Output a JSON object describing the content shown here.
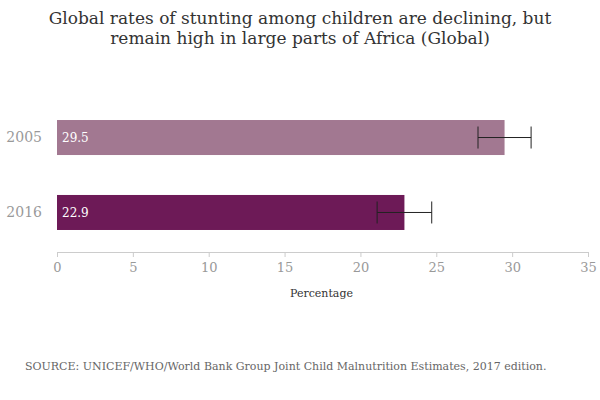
{
  "chart_data": {
    "type": "bar",
    "orientation": "horizontal",
    "title": "Global rates of stunting among children are declining, but remain high in large parts of Africa (Global)",
    "categories": [
      "2005",
      "2016"
    ],
    "values": [
      29.5,
      22.9
    ],
    "errors": [
      1.75,
      1.8
    ],
    "colors": [
      "#a27891",
      "#6d1a57"
    ],
    "data_labels": true,
    "xlabel": "Percentage",
    "xlim": [
      0,
      35
    ],
    "xticks": [
      0,
      5,
      10,
      15,
      20,
      25,
      30,
      35
    ],
    "grid": false,
    "source": "SOURCE: UNICEF/WHO/World Bank Group Joint Child Malnutrition Estimates, 2017 edition."
  }
}
